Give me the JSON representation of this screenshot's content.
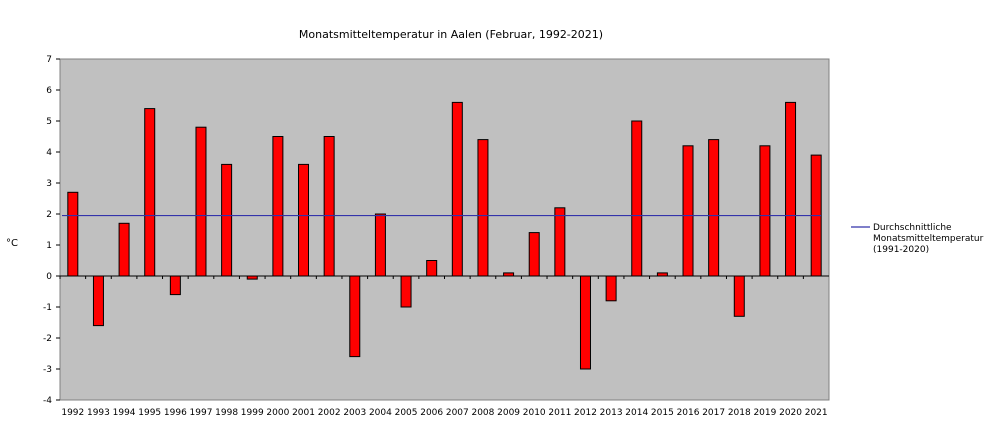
{
  "chart_data": {
    "type": "bar",
    "title": "Monatsmitteltemperatur in Aalen (Februar, 1992-2021)",
    "ylabel": "°C",
    "xlabel": "",
    "ylim": [
      -4,
      7
    ],
    "yticks": [
      -4,
      -3,
      -2,
      -1,
      0,
      1,
      2,
      3,
      4,
      5,
      6,
      7
    ],
    "grid": false,
    "legend_position": "right",
    "categories": [
      "1992",
      "1993",
      "1994",
      "1995",
      "1996",
      "1997",
      "1998",
      "1999",
      "2000",
      "2001",
      "2002",
      "2003",
      "2004",
      "2005",
      "2006",
      "2007",
      "2008",
      "2009",
      "2010",
      "2011",
      "2012",
      "2013",
      "2014",
      "2015",
      "2016",
      "2017",
      "2018",
      "2019",
      "2020",
      "2021"
    ],
    "series": [
      {
        "values": [
          2.7,
          -1.6,
          1.7,
          5.4,
          -0.6,
          4.8,
          3.6,
          -0.1,
          4.5,
          3.6,
          4.5,
          -2.6,
          2.0,
          -1.0,
          0.5,
          5.6,
          4.4,
          0.1,
          1.4,
          2.2,
          -3.0,
          -0.8,
          5.0,
          0.1,
          4.2,
          4.4,
          -1.3,
          4.2,
          5.6,
          3.9
        ],
        "color": "#ff0000"
      }
    ],
    "reference_line": {
      "name": "Durchschnittliche Monatsmitteltemperatur (1991-2020)",
      "legend_lines": [
        "Durchschnittliche",
        "Monatsmitteltemperatur",
        "(1991-2020)"
      ],
      "value": 1.95,
      "color": "#3333aa"
    },
    "plot_background": "#c0c0c0"
  }
}
